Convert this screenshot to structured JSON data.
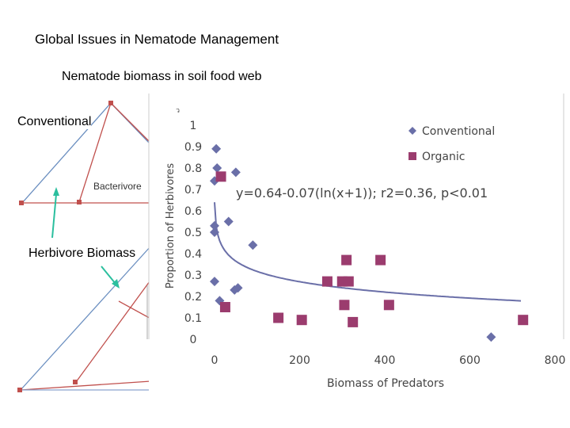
{
  "slide": {
    "title": "Global Issues in Nematode Management",
    "subtitle": "Nematode biomass in soil food web",
    "label_conventional": "Conventional",
    "label_bacterivore": "Bacterivore",
    "label_herbivore_biomass": "Herbivore Biomass"
  },
  "chart_data": {
    "type": "scatter",
    "title": "",
    "xlabel": "Biomass of Predators",
    "ylabel": "Proportion of Herbivores",
    "xlim": [
      0,
      800
    ],
    "ylim": [
      0,
      1
    ],
    "xticks": [
      0,
      200,
      400,
      600,
      800
    ],
    "yticks": [
      0,
      0.1,
      0.2,
      0.3,
      0.4,
      0.5,
      0.6,
      0.7,
      0.8,
      0.9,
      1
    ],
    "ytick_labels": [
      "0",
      "0.1",
      "0.2",
      "0.3",
      "0.4",
      "0.5",
      "0.6",
      "0.7",
      "0.8",
      "0.9",
      "1"
    ],
    "grid": false,
    "legend_position": "top-right",
    "annotation": "y=0.64-0.07(ln(x+1)); r2=0.36, p<0.01",
    "series": [
      {
        "name": "Conventional",
        "marker": "diamond",
        "color": "#6a6fa8",
        "points": [
          [
            4,
            0.89
          ],
          [
            6,
            0.8
          ],
          [
            0,
            0.74
          ],
          [
            0,
            0.53
          ],
          [
            0,
            0.5
          ],
          [
            33,
            0.55
          ],
          [
            50,
            0.78
          ],
          [
            90,
            0.44
          ],
          [
            0,
            0.27
          ],
          [
            47,
            0.23
          ],
          [
            55,
            0.24
          ],
          [
            12,
            0.18
          ],
          [
            650,
            0.01
          ]
        ]
      },
      {
        "name": "Organic",
        "marker": "square",
        "color": "#9b3c6e",
        "points": [
          [
            15,
            0.76
          ],
          [
            25,
            0.15
          ],
          [
            150,
            0.1
          ],
          [
            205,
            0.09
          ],
          [
            265,
            0.27
          ],
          [
            300,
            0.27
          ],
          [
            305,
            0.16
          ],
          [
            310,
            0.37
          ],
          [
            315,
            0.27
          ],
          [
            325,
            0.08
          ],
          [
            390,
            0.37
          ],
          [
            410,
            0.16
          ],
          [
            725,
            0.09
          ]
        ]
      }
    ],
    "trendline": {
      "type": "logarithmic",
      "a": 0.64,
      "b": 0.07
    }
  }
}
